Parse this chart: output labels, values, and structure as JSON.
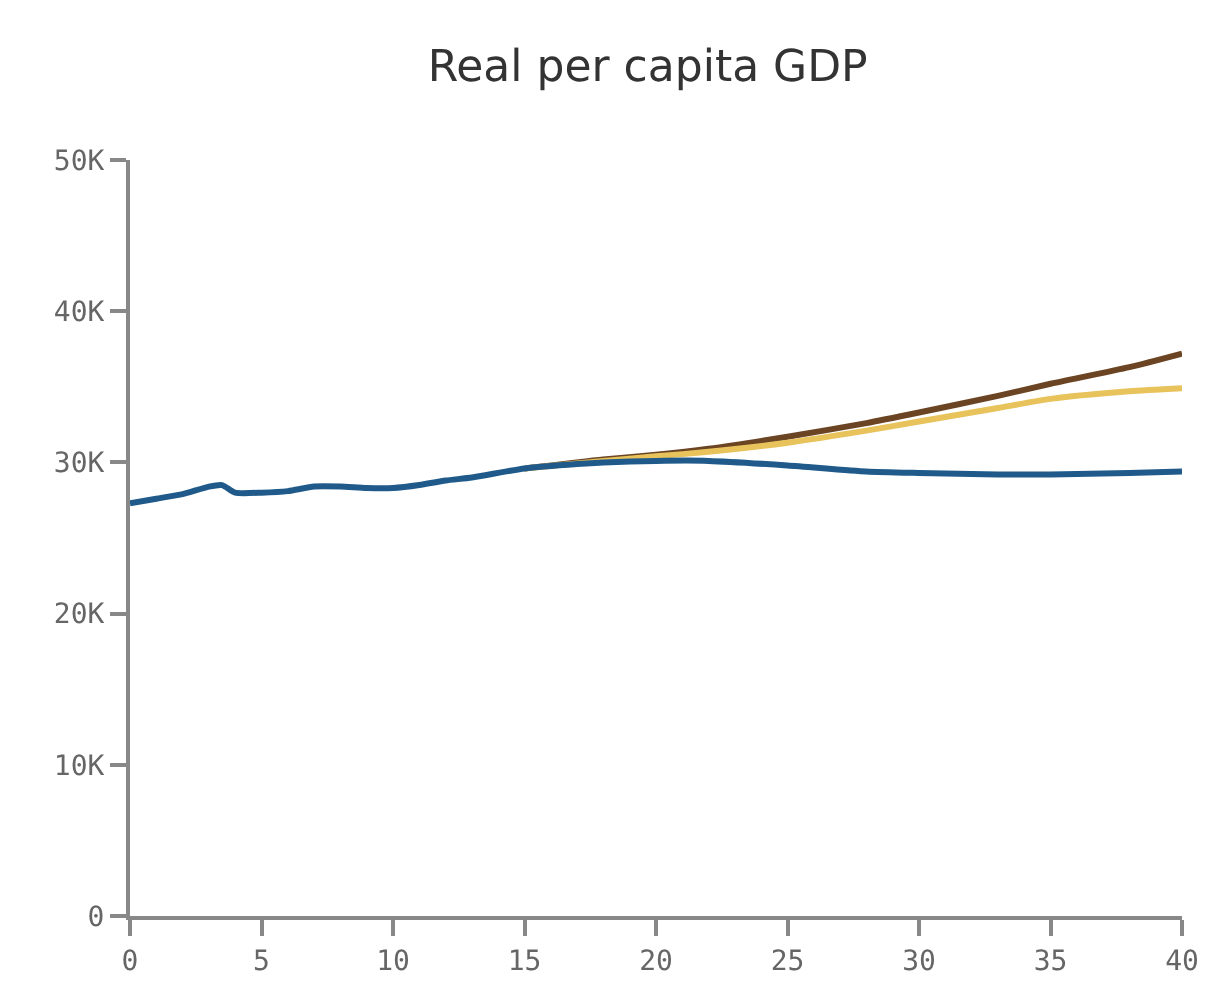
{
  "chart_data": {
    "type": "line",
    "title": "Real per capita GDP",
    "xlim": [
      0,
      40
    ],
    "xticks": [
      0,
      5,
      10,
      15,
      20,
      25,
      30,
      35,
      40
    ],
    "ylim": [
      0,
      50000
    ],
    "yticks": [
      {
        "value": 0,
        "label": "0"
      },
      {
        "value": 10000,
        "label": "10K"
      },
      {
        "value": 20000,
        "label": "20K"
      },
      {
        "value": 30000,
        "label": "30K"
      },
      {
        "value": 40000,
        "label": "40K"
      },
      {
        "value": 50000,
        "label": "50K"
      }
    ],
    "legend": false,
    "marker": "none",
    "line_style": "solid",
    "series": [
      {
        "color": "#6b4423",
        "x": [
          15,
          18,
          20,
          22,
          25,
          28,
          30,
          33,
          35,
          38,
          40
        ],
        "values": [
          29600,
          30200,
          30500,
          30900,
          31700,
          32600,
          33300,
          34400,
          35200,
          36300,
          37200
        ]
      },
      {
        "color": "#e8c25a",
        "x": [
          15,
          18,
          20,
          22,
          25,
          28,
          30,
          33,
          35,
          38,
          40
        ],
        "values": [
          29600,
          30100,
          30400,
          30700,
          31300,
          32100,
          32700,
          33600,
          34200,
          34700,
          34900
        ]
      },
      {
        "color": "#1f5a8a",
        "x": [
          0,
          1,
          2,
          3,
          3.5,
          4,
          5,
          6,
          7,
          8,
          9,
          10,
          11,
          12,
          13,
          15,
          17,
          18,
          20,
          22,
          25,
          28,
          30,
          33,
          35,
          38,
          40
        ],
        "values": [
          27300,
          27600,
          27900,
          28400,
          28500,
          28000,
          28000,
          28100,
          28400,
          28400,
          28300,
          28300,
          28500,
          28800,
          29000,
          29600,
          29900,
          30000,
          30100,
          30100,
          29800,
          29400,
          29300,
          29200,
          29200,
          29300,
          29400
        ]
      }
    ]
  }
}
